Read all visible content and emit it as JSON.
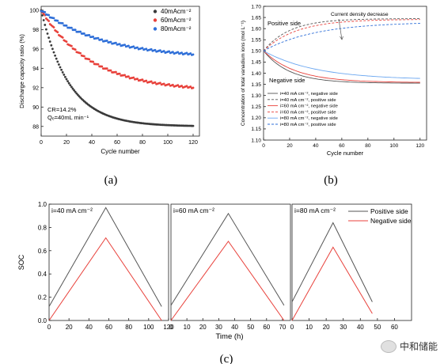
{
  "panels": {
    "a": {
      "caption": "(a)"
    },
    "b": {
      "caption": "(b)"
    },
    "c": {
      "caption": "(c)"
    }
  },
  "watermark": {
    "text": "中和储能",
    "icon": "wechat-icon"
  },
  "chart_data": [
    {
      "type": "scatter",
      "id": "a",
      "xlabel": "Cycle number",
      "ylabel": "Discharge capacity ratio (%)",
      "xlim": [
        0,
        125
      ],
      "ylim": [
        87,
        100.4
      ],
      "xticks": [
        0,
        20,
        40,
        60,
        80,
        100,
        120
      ],
      "yticks": [
        88,
        90,
        92,
        94,
        96,
        98,
        100
      ],
      "legend": {
        "position": "top-right"
      },
      "annotations": [
        "CR=14.2%",
        "Qₑ=40mL min⁻¹"
      ],
      "series": [
        {
          "name": "40mAcm⁻²",
          "color": "#3a3a3a",
          "start": 100,
          "end": 88.0,
          "k": 0.045,
          "x": [
            0,
            10,
            20,
            30,
            40,
            60,
            80,
            100,
            120
          ],
          "values": [
            100,
            96.5,
            94.0,
            92.0,
            90.6,
            89.0,
            88.4,
            88.1,
            88.0
          ]
        },
        {
          "name": "60mAcm⁻²",
          "color": "#e8413b",
          "start": 100,
          "end": 91.6,
          "k": 0.025,
          "x": [
            0,
            10,
            20,
            30,
            40,
            60,
            80,
            100,
            120
          ],
          "values": [
            100,
            98.6,
            97.0,
            95.7,
            94.7,
            93.3,
            92.5,
            92.0,
            91.8
          ]
        },
        {
          "name": "80mAcm⁻²",
          "color": "#2f6fd8",
          "start": 100,
          "end": 95.0,
          "k": 0.02,
          "x": [
            0,
            10,
            20,
            30,
            40,
            60,
            80,
            100,
            120
          ],
          "values": [
            100,
            99.5,
            98.6,
            97.9,
            97.3,
            96.5,
            96.0,
            95.7,
            95.4
          ]
        }
      ]
    },
    {
      "type": "line",
      "id": "b",
      "xlabel": "Cycle number",
      "ylabel": "Concentration of total vanadium ions (mol L⁻¹)",
      "xlim": [
        0,
        125
      ],
      "ylim": [
        1.1,
        1.7
      ],
      "xticks": [
        0,
        20,
        40,
        60,
        80,
        100,
        120
      ],
      "yticks": [
        1.1,
        1.15,
        1.2,
        1.25,
        1.3,
        1.35,
        1.4,
        1.45,
        1.5,
        1.55,
        1.6,
        1.65,
        1.7
      ],
      "labels": {
        "positive": "Positive side",
        "negative": "Negative side",
        "arrow": "Current density decrease"
      },
      "legend": {
        "position": "bottom-left"
      },
      "series": [
        {
          "name": "i=40 mA cm⁻², negative side",
          "color": "#555555",
          "dash": false,
          "start": 1.5,
          "end": 1.355,
          "k": 0.05,
          "x": [
            0,
            20,
            40,
            60,
            80,
            100,
            120
          ],
          "values": [
            1.5,
            1.4,
            1.37,
            1.36,
            1.356,
            1.355,
            1.355
          ]
        },
        {
          "name": "i=40 mA cm⁻², positive side",
          "color": "#555555",
          "dash": true,
          "start": 1.5,
          "end": 1.645,
          "k": 0.05,
          "x": [
            0,
            20,
            40,
            60,
            80,
            100,
            120
          ],
          "values": [
            1.5,
            1.6,
            1.63,
            1.64,
            1.644,
            1.645,
            1.645
          ]
        },
        {
          "name": "i=60 mA cm⁻², negative side",
          "color": "#e8413b",
          "dash": false,
          "start": 1.5,
          "end": 1.358,
          "k": 0.04,
          "x": [
            0,
            20,
            40,
            60,
            80,
            100,
            120
          ],
          "values": [
            1.5,
            1.42,
            1.385,
            1.37,
            1.363,
            1.36,
            1.358
          ]
        },
        {
          "name": "i=60 mA cm⁻², positive side",
          "color": "#e8413b",
          "dash": true,
          "start": 1.5,
          "end": 1.642,
          "k": 0.04,
          "x": [
            0,
            20,
            40,
            60,
            80,
            100,
            120
          ],
          "values": [
            1.5,
            1.58,
            1.615,
            1.63,
            1.637,
            1.64,
            1.642
          ]
        },
        {
          "name": "i=80 mA cm⁻², negative side",
          "color": "#6aa6f0",
          "dash": false,
          "start": 1.5,
          "end": 1.37,
          "k": 0.025,
          "x": [
            0,
            20,
            40,
            60,
            80,
            100,
            120
          ],
          "values": [
            1.5,
            1.44,
            1.41,
            1.395,
            1.385,
            1.378,
            1.375
          ]
        },
        {
          "name": "i=80 mA cm⁻², positive side",
          "color": "#2f6fd8",
          "dash": true,
          "start": 1.5,
          "end": 1.63,
          "k": 0.025,
          "x": [
            0,
            20,
            40,
            60,
            80,
            100,
            120
          ],
          "values": [
            1.5,
            1.56,
            1.59,
            1.605,
            1.615,
            1.622,
            1.625
          ]
        }
      ]
    },
    {
      "type": "line",
      "id": "c",
      "xlabel": "Time (h)",
      "ylabel": "SOC",
      "ylim": [
        0.0,
        1.0
      ],
      "yticks": [
        0.0,
        0.2,
        0.4,
        0.6,
        0.8,
        1.0
      ],
      "legend": {
        "position": "top-right",
        "entries": [
          "Positive side",
          "Negative side"
        ],
        "colors": [
          "#555555",
          "#e8413b"
        ]
      },
      "subplots": [
        {
          "label": "i=40 mA cm⁻²",
          "xlim": [
            0,
            120
          ],
          "xticks": [
            0,
            20,
            40,
            60,
            80,
            100,
            120
          ],
          "series": [
            {
              "name": "Positive side",
              "color": "#555555",
              "x": [
                0,
                57,
                113
              ],
              "values": [
                0.12,
                0.97,
                0.12
              ]
            },
            {
              "name": "Negative side",
              "color": "#e8413b",
              "x": [
                0,
                57,
                113
              ],
              "values": [
                0.0,
                0.71,
                0.0
              ]
            }
          ]
        },
        {
          "label": "i=60 mA cm⁻²",
          "xlim": [
            0,
            75
          ],
          "xticks": [
            0,
            10,
            20,
            30,
            40,
            50,
            60,
            70
          ],
          "series": [
            {
              "name": "Positive side",
              "color": "#555555",
              "x": [
                0,
                36,
                71
              ],
              "values": [
                0.13,
                0.92,
                0.13
              ]
            },
            {
              "name": "Negative side",
              "color": "#e8413b",
              "x": [
                0,
                36,
                71
              ],
              "values": [
                0.0,
                0.68,
                0.0
              ]
            }
          ]
        },
        {
          "label": "i=80 mA cm⁻²",
          "xlim": [
            0,
            70
          ],
          "xticks": [
            0,
            10,
            20,
            30,
            40,
            50,
            60
          ],
          "series": [
            {
              "name": "Positive side",
              "color": "#555555",
              "x": [
                0,
                24,
                47
              ],
              "values": [
                0.16,
                0.84,
                0.16
              ]
            },
            {
              "name": "Negative side",
              "color": "#e8413b",
              "x": [
                0,
                24,
                47
              ],
              "values": [
                0.0,
                0.63,
                0.06
              ]
            }
          ]
        }
      ]
    }
  ]
}
